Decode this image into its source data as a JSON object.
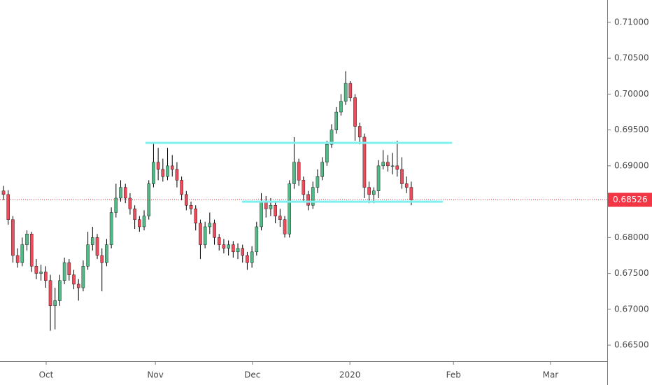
{
  "chart_data": {
    "type": "candlestick",
    "up_color": "#53b987",
    "down_color": "#eb4d5c",
    "open": [
      0.6865,
      0.686,
      0.6825,
      0.6775,
      0.6765,
      0.679,
      0.6805,
      0.676,
      0.675,
      0.6752,
      0.674,
      0.6705,
      0.6712,
      0.674,
      0.6765,
      0.6748,
      0.6735,
      0.673,
      0.676,
      0.679,
      0.68,
      0.6775,
      0.6765,
      0.679,
      0.6835,
      0.6855,
      0.687,
      0.6855,
      0.684,
      0.6825,
      0.6815,
      0.683,
      0.6875,
      0.6905,
      0.6895,
      0.6885,
      0.69,
      0.6895,
      0.688,
      0.686,
      0.6845,
      0.684,
      0.682,
      0.679,
      0.6815,
      0.682,
      0.68,
      0.679,
      0.6785,
      0.679,
      0.678,
      0.6785,
      0.6775,
      0.6765,
      0.678,
      0.6815,
      0.685,
      0.684,
      0.6845,
      0.683,
      0.6825,
      0.6805,
      0.6875,
      0.6905,
      0.688,
      0.686,
      0.6845,
      0.687,
      0.6885,
      0.6905,
      0.693,
      0.695,
      0.6975,
      0.699,
      0.7015,
      0.6995,
      0.6955,
      0.694,
      0.687,
      0.686,
      0.6865,
      0.69,
      0.6905,
      0.69,
      0.69,
      0.6895,
      0.6875,
      0.687
    ],
    "high": [
      0.6872,
      0.6866,
      0.683,
      0.6785,
      0.68,
      0.681,
      0.6808,
      0.677,
      0.6762,
      0.676,
      0.6748,
      0.673,
      0.6748,
      0.6772,
      0.677,
      0.6755,
      0.6742,
      0.6768,
      0.6808,
      0.6815,
      0.6805,
      0.6785,
      0.6798,
      0.6842,
      0.6875,
      0.688,
      0.6875,
      0.6862,
      0.6845,
      0.683,
      0.6838,
      0.688,
      0.6932,
      0.6925,
      0.691,
      0.6925,
      0.6915,
      0.6905,
      0.6885,
      0.6865,
      0.685,
      0.6845,
      0.6825,
      0.6822,
      0.6835,
      0.6825,
      0.6805,
      0.6798,
      0.6796,
      0.6795,
      0.6792,
      0.679,
      0.678,
      0.6788,
      0.6822,
      0.6862,
      0.6858,
      0.6855,
      0.685,
      0.684,
      0.683,
      0.688,
      0.694,
      0.691,
      0.6885,
      0.6865,
      0.6878,
      0.6895,
      0.6912,
      0.6935,
      0.6958,
      0.6982,
      0.7,
      0.7032,
      0.7018,
      0.7,
      0.696,
      0.6945,
      0.6878,
      0.687,
      0.6908,
      0.6922,
      0.6915,
      0.6918,
      0.6935,
      0.6912,
      0.6885,
      0.6878
    ],
    "low": [
      0.6852,
      0.6818,
      0.6765,
      0.6758,
      0.676,
      0.6782,
      0.6752,
      0.6742,
      0.674,
      0.673,
      0.667,
      0.6672,
      0.6705,
      0.6735,
      0.674,
      0.6728,
      0.6712,
      0.6725,
      0.6755,
      0.6782,
      0.677,
      0.6725,
      0.676,
      0.6785,
      0.6828,
      0.685,
      0.6848,
      0.6832,
      0.6812,
      0.6808,
      0.681,
      0.6825,
      0.687,
      0.688,
      0.6878,
      0.688,
      0.6885,
      0.687,
      0.6852,
      0.6838,
      0.6832,
      0.681,
      0.677,
      0.6785,
      0.6805,
      0.679,
      0.6782,
      0.6778,
      0.6775,
      0.6772,
      0.677,
      0.6765,
      0.6755,
      0.6758,
      0.6775,
      0.681,
      0.6828,
      0.683,
      0.682,
      0.6815,
      0.68,
      0.68,
      0.6868,
      0.6872,
      0.685,
      0.6838,
      0.684,
      0.6862,
      0.688,
      0.69,
      0.6925,
      0.6945,
      0.697,
      0.6985,
      0.699,
      0.6935,
      0.693,
      0.6855,
      0.6848,
      0.6848,
      0.6855,
      0.6895,
      0.6892,
      0.6888,
      0.6885,
      0.6868,
      0.6862,
      0.6845
    ],
    "close": [
      0.686,
      0.6825,
      0.6775,
      0.6765,
      0.679,
      0.6805,
      0.676,
      0.675,
      0.6752,
      0.674,
      0.6705,
      0.6712,
      0.674,
      0.6765,
      0.6748,
      0.6735,
      0.673,
      0.676,
      0.679,
      0.68,
      0.6775,
      0.6765,
      0.679,
      0.6835,
      0.6855,
      0.687,
      0.6855,
      0.684,
      0.6825,
      0.6815,
      0.683,
      0.6875,
      0.6905,
      0.6895,
      0.6885,
      0.69,
      0.6895,
      0.688,
      0.686,
      0.6845,
      0.684,
      0.682,
      0.679,
      0.6815,
      0.682,
      0.68,
      0.679,
      0.6785,
      0.679,
      0.678,
      0.6785,
      0.6775,
      0.6765,
      0.678,
      0.6815,
      0.685,
      0.684,
      0.6845,
      0.683,
      0.6825,
      0.6805,
      0.6875,
      0.6905,
      0.688,
      0.686,
      0.6845,
      0.687,
      0.6885,
      0.6905,
      0.693,
      0.695,
      0.6975,
      0.699,
      0.7015,
      0.6995,
      0.6955,
      0.694,
      0.687,
      0.686,
      0.6865,
      0.69,
      0.6905,
      0.69,
      0.69,
      0.6895,
      0.6875,
      0.687,
      0.68526
    ],
    "ylim": [
      0.66276,
      0.71312
    ],
    "yticks": [
      {
        "value": 0.665,
        "label": "0.66500"
      },
      {
        "value": 0.67,
        "label": "0.67000"
      },
      {
        "value": 0.675,
        "label": "0.67500"
      },
      {
        "value": 0.68,
        "label": "0.68000"
      },
      {
        "value": 0.685,
        "label": "0.68500"
      },
      {
        "value": 0.69,
        "label": "0.69000"
      },
      {
        "value": 0.695,
        "label": "0.69500"
      },
      {
        "value": 0.7,
        "label": "0.70000"
      },
      {
        "value": 0.705,
        "label": "0.70500"
      },
      {
        "value": 0.71,
        "label": "0.71000"
      }
    ],
    "xlim": [
      -0.75,
      128.8
    ],
    "xticks": [
      {
        "value": 9.1,
        "label": "Oct"
      },
      {
        "value": 32.4,
        "label": "Nov"
      },
      {
        "value": 53.1,
        "label": "Dec"
      },
      {
        "value": 73.9,
        "label": "2020"
      },
      {
        "value": 96.0,
        "label": "Feb"
      },
      {
        "value": 116.7,
        "label": "Mar"
      }
    ],
    "levels": [
      {
        "value": 0.6932,
        "start": 30.3,
        "end": 95.7,
        "color": "#7ff0f0"
      },
      {
        "value": 0.685,
        "start": 50.9,
        "end": 93.7,
        "color": "#7ff0f0"
      }
    ],
    "last_price": 0.68526,
    "last_price_color": "#f23645"
  }
}
